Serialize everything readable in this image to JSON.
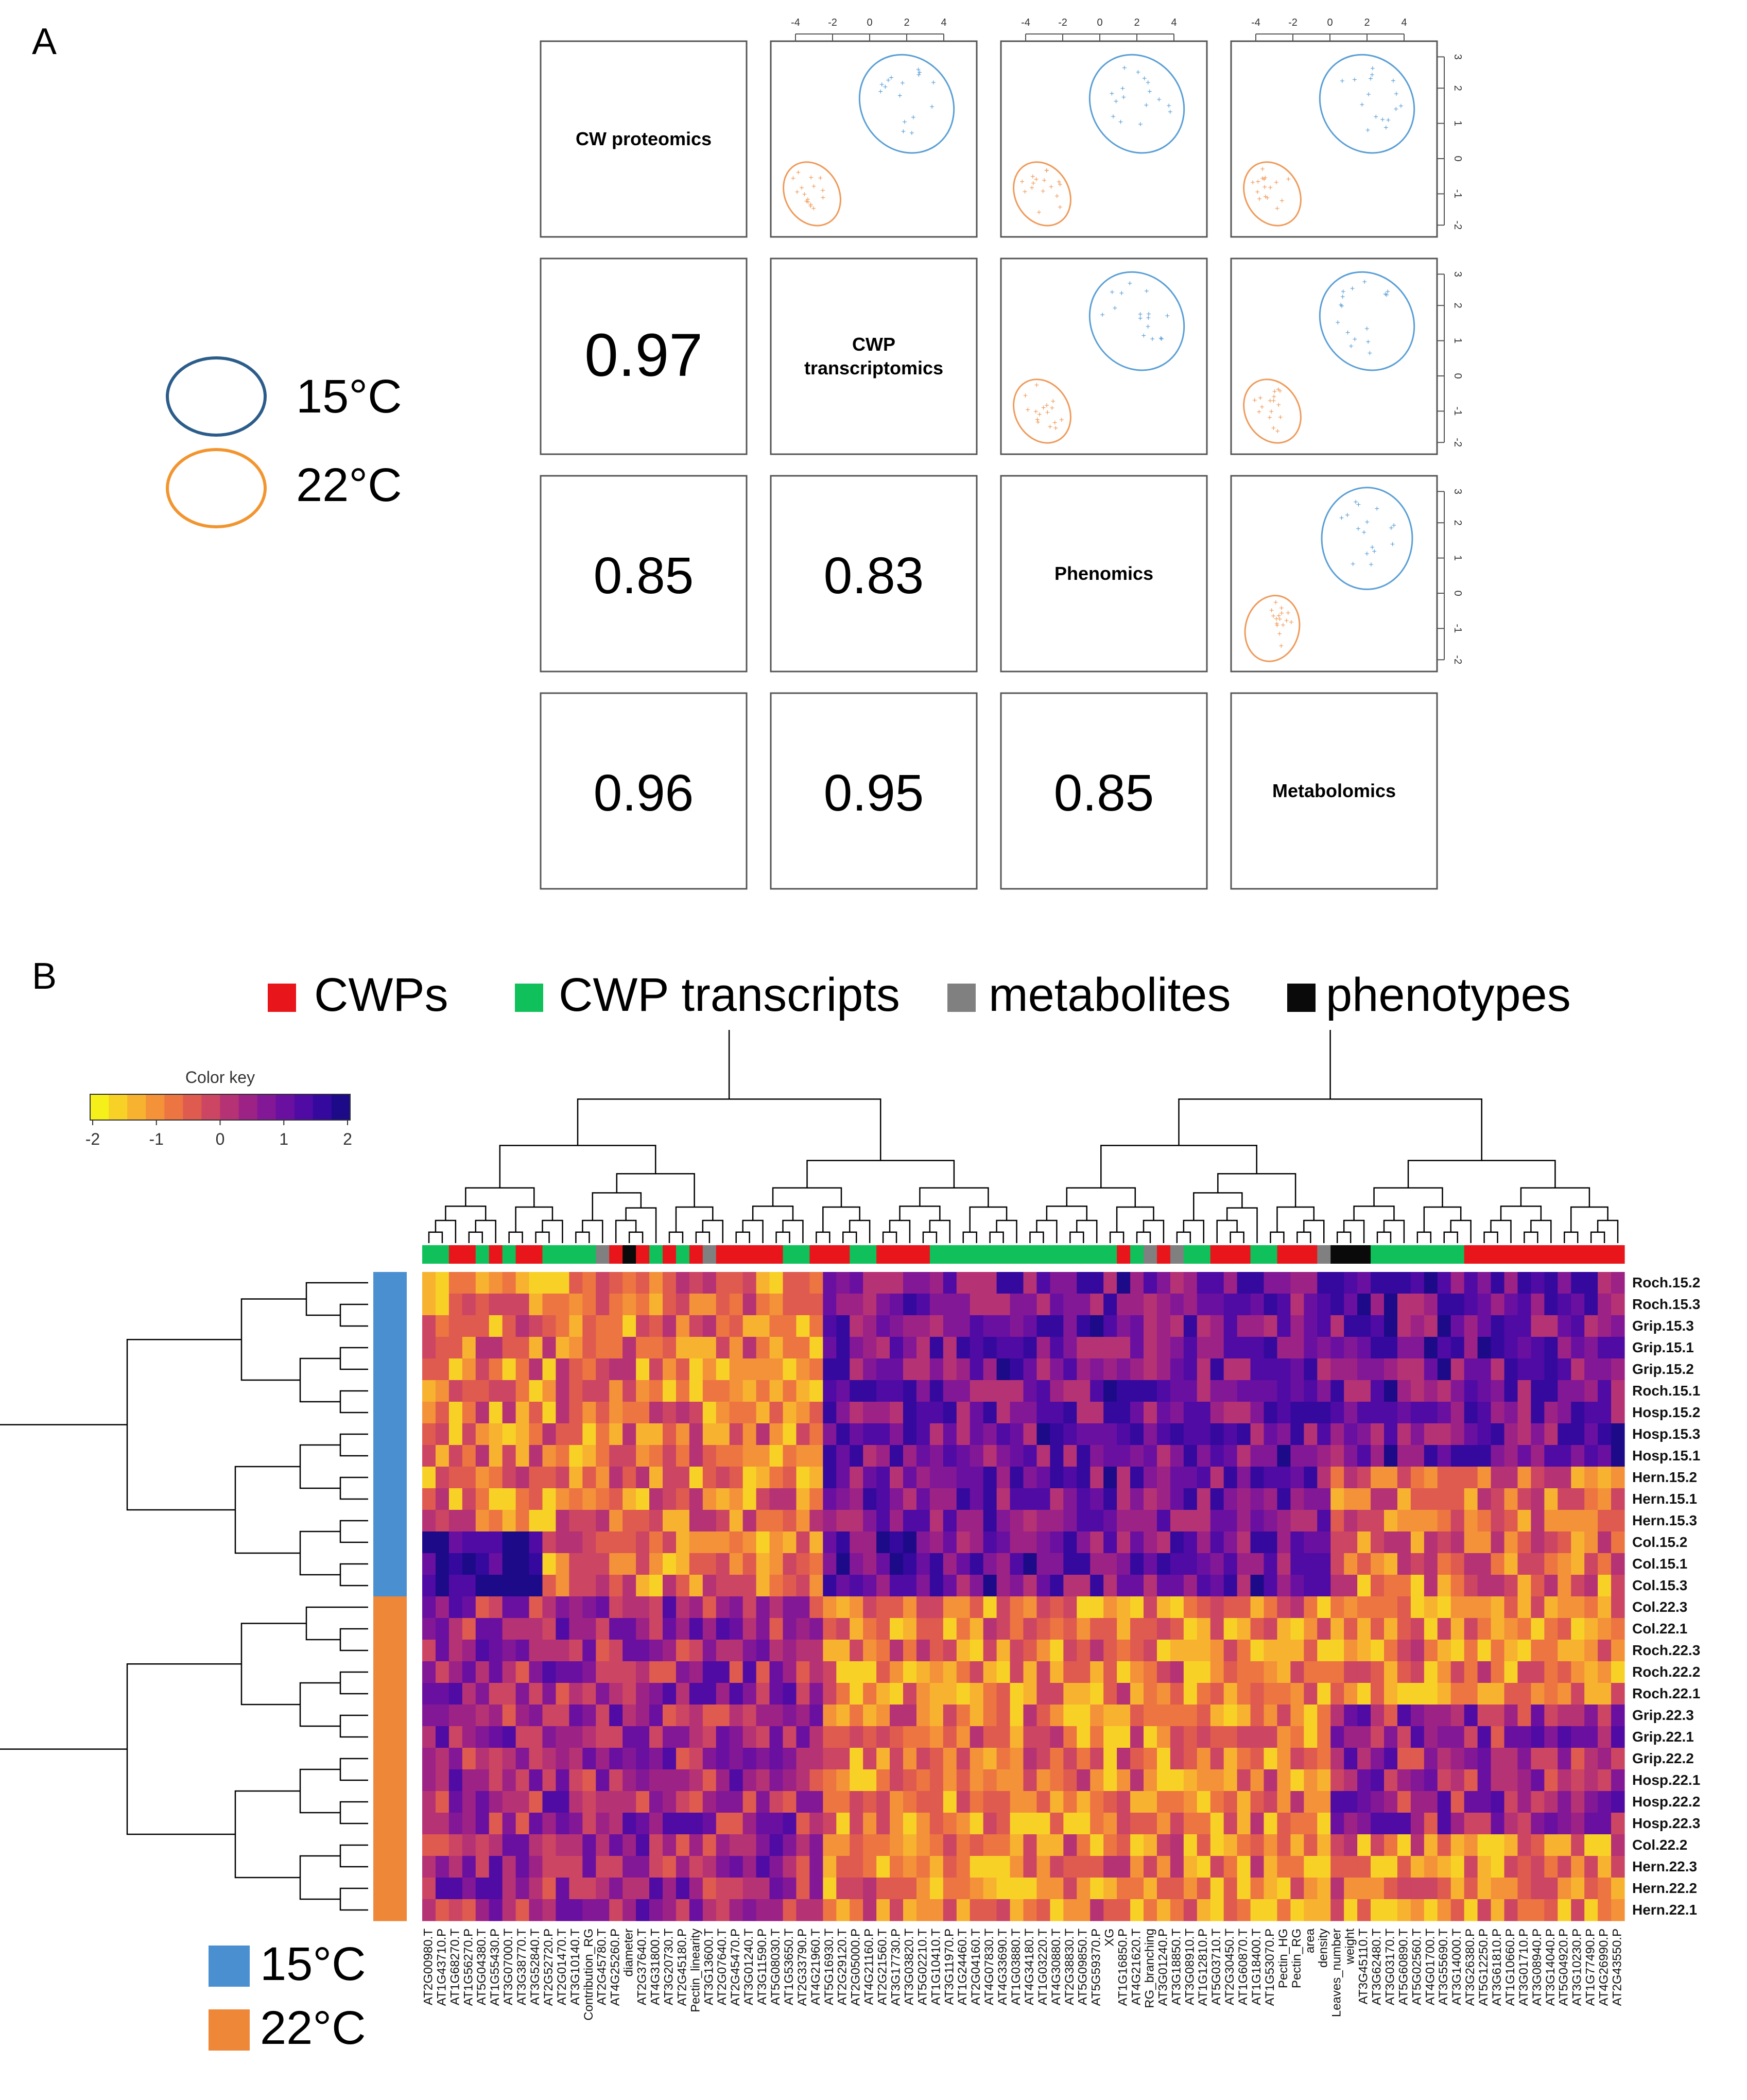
{
  "panel_a": {
    "label": "A",
    "legend": [
      {
        "text": "15°C",
        "color": "#2b5c8a"
      },
      {
        "text": "22°C",
        "color": "#f2952f"
      }
    ],
    "variables": [
      "CW proteomics",
      "CWP\ntranscriptomics",
      "Phenomics",
      "Metabolomics"
    ],
    "correlations": [
      {
        "row": 1,
        "col": 0,
        "value": "0.97"
      },
      {
        "row": 2,
        "col": 0,
        "value": "0.85"
      },
      {
        "row": 2,
        "col": 1,
        "value": "0.83"
      },
      {
        "row": 3,
        "col": 0,
        "value": "0.96"
      },
      {
        "row": 3,
        "col": 1,
        "value": "0.95"
      },
      {
        "row": 3,
        "col": 2,
        "value": "0.85"
      }
    ],
    "top_ticks": [
      "-4",
      "-2",
      "0",
      "2",
      "4"
    ],
    "right_ticks": [
      "3",
      "2",
      "1",
      "0",
      "-1",
      "-2"
    ],
    "scatter_colors": {
      "15C": "#5a9fd6",
      "22C": "#ef9a5a"
    }
  },
  "panel_b": {
    "label": "B",
    "type_legend": [
      {
        "text": "CWPs",
        "color": "#e8161b"
      },
      {
        "text": "CWP transcripts",
        "color": "#10c05a"
      },
      {
        "text": "metabolites",
        "color": "#808080"
      },
      {
        "text": "phenotypes",
        "color": "#0a0a0a"
      }
    ],
    "color_key": {
      "title": "Color key",
      "ticks": [
        "-2",
        "-1",
        "0",
        "1",
        "2"
      ],
      "colors": [
        "#f5f01a",
        "#f8d127",
        "#f7b230",
        "#f39239",
        "#ec7541",
        "#df5a4f",
        "#cc4563",
        "#b53275",
        "#9c2286",
        "#821896",
        "#6a10a0",
        "#4f0ba4",
        "#35099e",
        "#1c0a89"
      ]
    },
    "temp_legend": [
      {
        "text": "15°C",
        "color": "#4a90d0"
      },
      {
        "text": "22°C",
        "color": "#ee8738"
      }
    ]
  },
  "chart_data": {
    "type": "heatmap",
    "rows": [
      "Roch.15.2",
      "Roch.15.3",
      "Grip.15.3",
      "Grip.15.1",
      "Grip.15.2",
      "Roch.15.1",
      "Hosp.15.2",
      "Hosp.15.3",
      "Hosp.15.1",
      "Hern.15.2",
      "Hern.15.1",
      "Hern.15.3",
      "Col.15.2",
      "Col.15.1",
      "Col.15.3",
      "Col.22.3",
      "Col.22.1",
      "Roch.22.3",
      "Roch.22.2",
      "Roch.22.1",
      "Grip.22.3",
      "Grip.22.1",
      "Grip.22.2",
      "Hosp.22.1",
      "Hosp.22.2",
      "Hosp.22.3",
      "Col.22.2",
      "Hern.22.3",
      "Hern.22.2",
      "Hern.22.1"
    ],
    "row_temperature": [
      "15C",
      "15C",
      "15C",
      "15C",
      "15C",
      "15C",
      "15C",
      "15C",
      "15C",
      "15C",
      "15C",
      "15C",
      "15C",
      "15C",
      "15C",
      "22C",
      "22C",
      "22C",
      "22C",
      "22C",
      "22C",
      "22C",
      "22C",
      "22C",
      "22C",
      "22C",
      "22C",
      "22C",
      "22C",
      "22C"
    ],
    "columns": [
      "AT2G00980.T",
      "AT1G43710.P",
      "AT1G68270.T",
      "AT1G56270.P",
      "AT5G04380.T",
      "AT1G55430.P",
      "AT3G07000.T",
      "AT3G38770.T",
      "AT3G52840.T",
      "AT2G52720.P",
      "AT2G01470.T",
      "AT3G10140.T",
      "Contribution_RG",
      "AT2G45780.T",
      "AT4G25260.P",
      "diameter",
      "AT2G37640.T",
      "AT4G31800.T",
      "AT3G20730.T",
      "AT2G45180.P",
      "Pectin_linearity",
      "AT3G13600.T",
      "AT2G07640.T",
      "AT2G45470.P",
      "AT3G01240.T",
      "AT3G11590.P",
      "AT5G08030.T",
      "AT1G53650.T",
      "AT2G33790.P",
      "AT4G21960.T",
      "AT5G16930.T",
      "AT2G29120.T",
      "AT2G05000.P",
      "AT4G21160.P",
      "AT2G21560.T",
      "AT3G17730.P",
      "AT3G03820.T",
      "AT5G02210.T",
      "AT1G10410.T",
      "AT3G11970.P",
      "AT1G24460.T",
      "AT2G04160.T",
      "AT4G07830.T",
      "AT4G33690.T",
      "AT1G03880.T",
      "AT4G34180.T",
      "AT1G03220.T",
      "AT4G30880.T",
      "AT2G38830.T",
      "AT5G09850.T",
      "AT5G59370.P",
      "XG",
      "AT1G16850.P",
      "AT4G21620.T",
      "RG_branching",
      "AT3G01240.P",
      "AT3G18850.T",
      "AT3G08910.T",
      "AT1G12810.P",
      "AT5G03710.T",
      "AT2G30450.T",
      "AT1G60870.T",
      "AT1G18400.T",
      "AT1G53070.P",
      "Pectin_HG",
      "Pectin_RG",
      "area",
      "density",
      "Leaves_number",
      "weight",
      "AT3G45110.T",
      "AT3G62480.T",
      "AT3G03170.T",
      "AT5G60890.T",
      "AT5G02560.T",
      "AT4G01700.T",
      "AT3G55690.T",
      "AT3G14000.T",
      "AT3G26380.P",
      "AT5G12250.P",
      "AT3G61810.P",
      "AT1G10660.P",
      "AT3G01710.P",
      "AT3G08940.P",
      "AT3G14040.P",
      "AT5G04920.P",
      "AT3G10230.P",
      "AT1G77490.P",
      "AT4G26990.P",
      "AT2G43550.P"
    ],
    "column_types": [
      "transcript",
      "transcript",
      "protein",
      "protein",
      "transcript",
      "protein",
      "transcript",
      "protein",
      "protein",
      "transcript",
      "transcript",
      "transcript",
      "transcript",
      "metabolite",
      "protein",
      "phenotype",
      "protein",
      "transcript",
      "protein",
      "transcript",
      "protein",
      "metabolite",
      "protein",
      "protein",
      "protein",
      "protein",
      "protein",
      "transcript",
      "transcript",
      "protein",
      "protein",
      "protein",
      "transcript",
      "transcript",
      "protein",
      "protein",
      "protein",
      "protein",
      "transcript",
      "transcript",
      "transcript",
      "transcript",
      "transcript",
      "transcript",
      "transcript",
      "transcript",
      "transcript",
      "transcript",
      "transcript",
      "transcript",
      "transcript",
      "transcript",
      "protein",
      "transcript",
      "metabolite",
      "protein",
      "metabolite",
      "transcript",
      "transcript",
      "protein",
      "protein",
      "protein",
      "transcript",
      "transcript",
      "protein",
      "protein",
      "protein",
      "metabolite",
      "phenotype",
      "phenotype",
      "phenotype",
      "transcript",
      "transcript",
      "transcript",
      "transcript",
      "transcript",
      "transcript",
      "transcript",
      "protein",
      "protein",
      "protein",
      "protein",
      "protein",
      "protein",
      "protein",
      "protein",
      "protein",
      "protein",
      "protein",
      "protein"
    ],
    "value_range": [
      -2,
      2
    ]
  }
}
